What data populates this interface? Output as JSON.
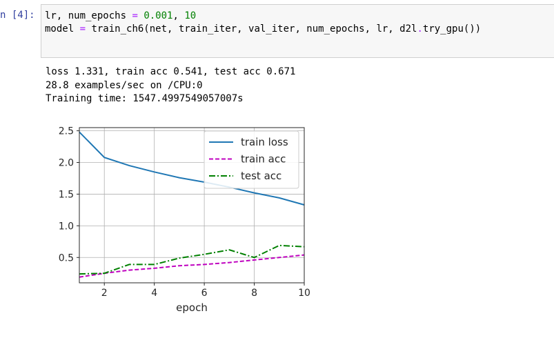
{
  "cell": {
    "prompt": "n [4]:",
    "code_lines": [
      [
        {
          "t": "lr, num_epochs ",
          "c": "txt"
        },
        {
          "t": "=",
          "c": "op"
        },
        {
          "t": " ",
          "c": "txt"
        },
        {
          "t": "0.001",
          "c": "num"
        },
        {
          "t": ", ",
          "c": "txt"
        },
        {
          "t": "10",
          "c": "num"
        }
      ],
      [
        {
          "t": "model ",
          "c": "txt"
        },
        {
          "t": "=",
          "c": "op"
        },
        {
          "t": " train_ch6(net, train_iter, val_iter, num_epochs, lr, d2l",
          "c": "txt"
        },
        {
          "t": ".",
          "c": "op"
        },
        {
          "t": "try_gpu())",
          "c": "txt"
        }
      ]
    ],
    "output_lines": [
      "loss 1.331, train acc 0.541, test acc 0.671",
      "28.8 examples/sec on /CPU:0",
      "Training time: 1547.4997549057007s"
    ]
  },
  "chart_data": {
    "type": "line",
    "xlabel": "epoch",
    "ylabel": "",
    "xlim": [
      1,
      10
    ],
    "ylim": [
      0.1,
      2.55
    ],
    "xticks": [
      2,
      4,
      6,
      8,
      10
    ],
    "yticks": [
      0.5,
      1.0,
      1.5,
      2.0,
      2.5
    ],
    "xtick_labels": [
      "2",
      "4",
      "6",
      "8",
      "10"
    ],
    "ytick_labels": [
      "0.5",
      "1.0",
      "1.5",
      "2.0",
      "2.5"
    ],
    "grid": true,
    "legend_placement": "top-right",
    "x": [
      1,
      2,
      3,
      4,
      5,
      6,
      7,
      8,
      9,
      10
    ],
    "series": [
      {
        "name": "train loss",
        "color": "#1f77b4",
        "style": "solid",
        "values": [
          2.48,
          2.08,
          1.95,
          1.85,
          1.76,
          1.69,
          1.61,
          1.52,
          1.44,
          1.33
        ]
      },
      {
        "name": "train acc",
        "color": "#bf00bf",
        "style": "dashed",
        "values": [
          0.19,
          0.25,
          0.3,
          0.33,
          0.37,
          0.39,
          0.42,
          0.46,
          0.5,
          0.54
        ]
      },
      {
        "name": "test acc",
        "color": "#008000",
        "style": "dashdot",
        "values": [
          0.24,
          0.25,
          0.39,
          0.39,
          0.49,
          0.55,
          0.62,
          0.5,
          0.69,
          0.67
        ]
      }
    ]
  }
}
